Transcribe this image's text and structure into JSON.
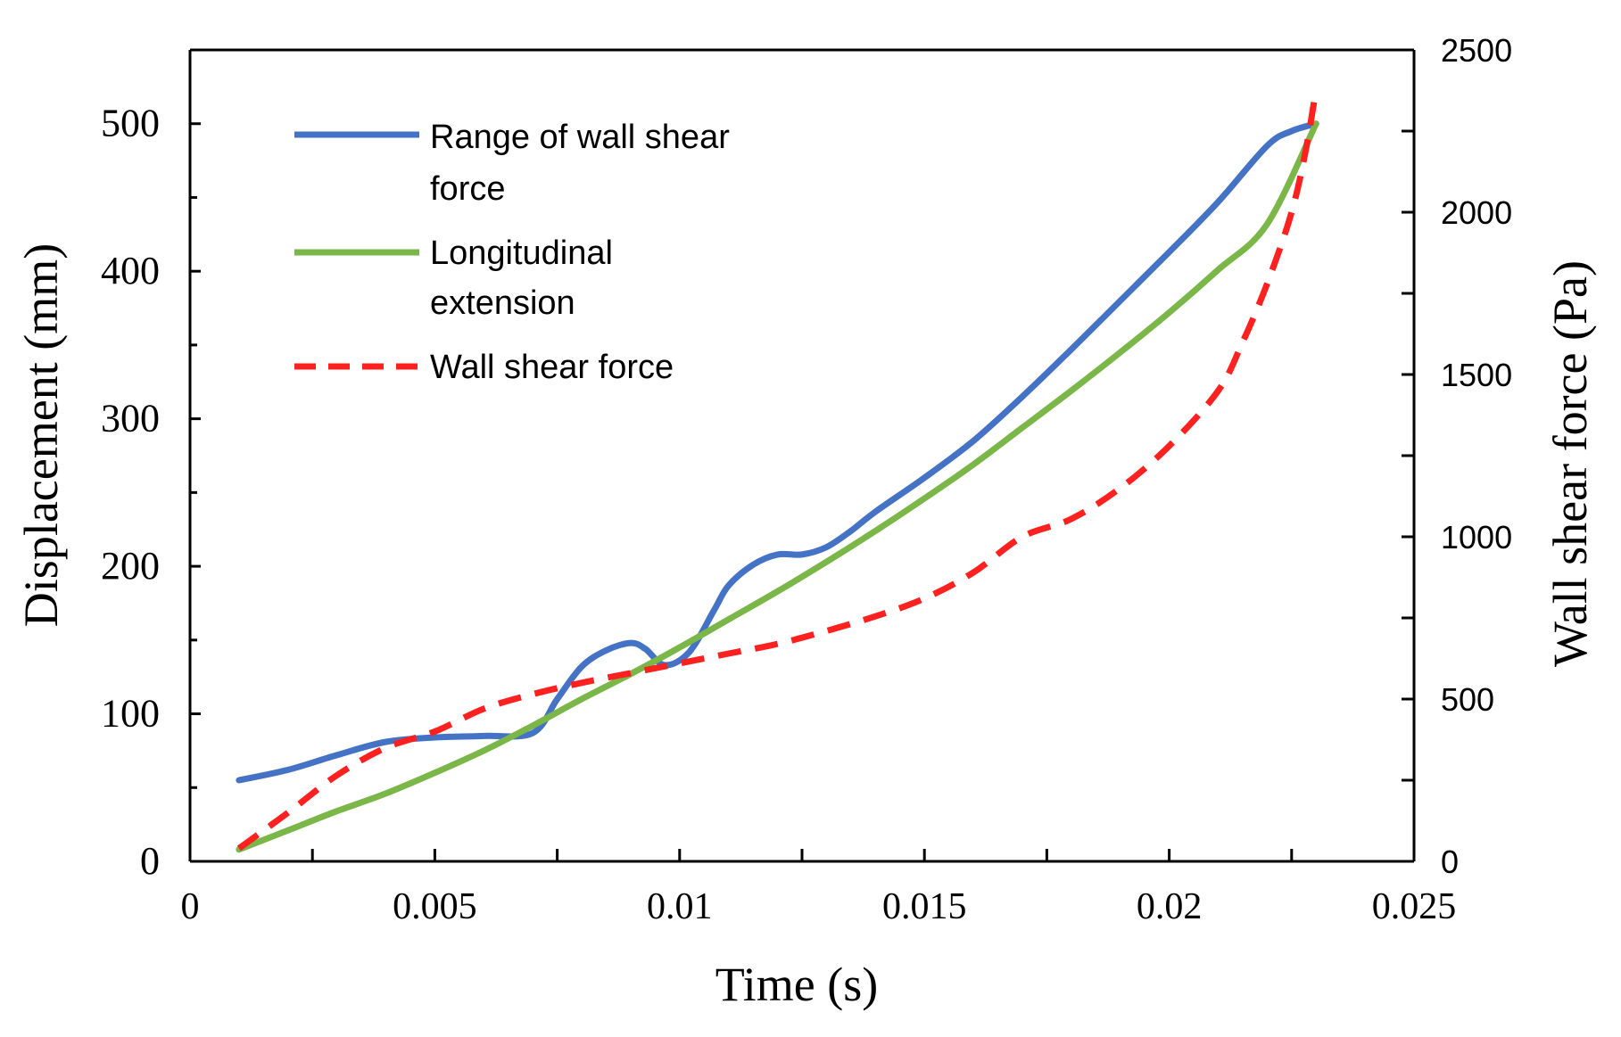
{
  "chart_data": {
    "type": "line",
    "title": "",
    "xlabel": "Time (s)",
    "ylabel": "Displacement (mm)",
    "y2label": "Wall shear force (Pa)",
    "xlim": [
      0,
      0.025
    ],
    "ylim": [
      0,
      550
    ],
    "y2lim": [
      0,
      2500
    ],
    "xticks": [
      0,
      0.005,
      0.01,
      0.015,
      0.02,
      0.025
    ],
    "xtick_labels": [
      "0",
      "0.005",
      "0.01",
      "0.015",
      "0.02",
      "0.025"
    ],
    "yticks": [
      0,
      100,
      200,
      300,
      400,
      500
    ],
    "ytick_labels": [
      "0",
      "100",
      "200",
      "300",
      "400",
      "500"
    ],
    "y2ticks": [
      0,
      500,
      1000,
      1500,
      2000,
      2500
    ],
    "y2tick_labels": [
      "0",
      "500",
      "1000",
      "1500",
      "2000",
      "2500"
    ],
    "legend_position": "top-left",
    "series": [
      {
        "name": "Range of wall shear force",
        "axis": "left",
        "style": "solid",
        "color": "#4472C4",
        "x": [
          0.001,
          0.002,
          0.003,
          0.004,
          0.005,
          0.006,
          0.007,
          0.0075,
          0.008,
          0.0085,
          0.009,
          0.0093,
          0.0097,
          0.0102,
          0.0107,
          0.011,
          0.0115,
          0.012,
          0.0125,
          0.013,
          0.0135,
          0.014,
          0.015,
          0.016,
          0.017,
          0.018,
          0.019,
          0.02,
          0.021,
          0.022,
          0.0225,
          0.023
        ],
        "y": [
          55,
          62,
          72,
          81,
          84,
          85,
          87,
          110,
          132,
          143,
          148,
          144,
          133,
          142,
          170,
          187,
          201,
          208,
          208,
          213,
          224,
          237,
          260,
          285,
          315,
          347,
          380,
          413,
          447,
          485,
          495,
          500
        ]
      },
      {
        "name": "Longitudinal extension",
        "axis": "left",
        "style": "solid",
        "color": "#7AB648",
        "x": [
          0.001,
          0.002,
          0.003,
          0.004,
          0.005,
          0.006,
          0.007,
          0.008,
          0.009,
          0.01,
          0.011,
          0.012,
          0.013,
          0.014,
          0.015,
          0.016,
          0.017,
          0.018,
          0.019,
          0.02,
          0.021,
          0.022,
          0.023
        ],
        "y": [
          8,
          21,
          34,
          46,
          60,
          75,
          92,
          110,
          127,
          145,
          164,
          183,
          203,
          224,
          246,
          269,
          294,
          319,
          345,
          372,
          401,
          432,
          500
        ]
      },
      {
        "name": "Wall shear force",
        "axis": "right",
        "style": "dashed",
        "color": "#FF2020",
        "x": [
          0.001,
          0.002,
          0.003,
          0.004,
          0.005,
          0.006,
          0.007,
          0.008,
          0.009,
          0.01,
          0.011,
          0.012,
          0.013,
          0.014,
          0.015,
          0.016,
          0.017,
          0.018,
          0.019,
          0.02,
          0.021,
          0.0215,
          0.022,
          0.0225,
          0.0228,
          0.023
        ],
        "y": [
          40,
          150,
          265,
          350,
          400,
          470,
          515,
          550,
          580,
          610,
          640,
          670,
          710,
          755,
          810,
          890,
          1000,
          1055,
          1150,
          1280,
          1450,
          1600,
          1780,
          2000,
          2200,
          2380
        ]
      }
    ]
  }
}
